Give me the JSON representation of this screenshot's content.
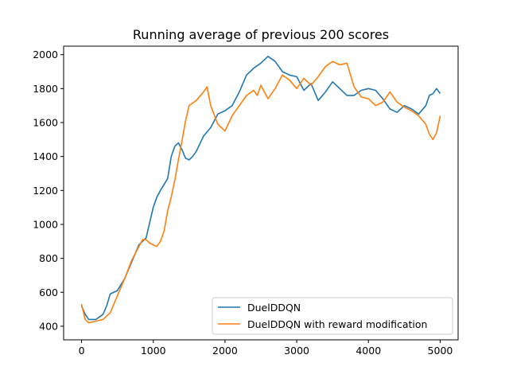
{
  "chart_data": {
    "type": "line",
    "title": "Running average of previous 200 scores",
    "xlabel": "",
    "ylabel": "",
    "xlim": [
      -250,
      5250
    ],
    "ylim": [
      320,
      2050
    ],
    "x_ticks": [
      0,
      1000,
      2000,
      3000,
      4000,
      5000
    ],
    "y_ticks": [
      400,
      600,
      800,
      1000,
      1200,
      1400,
      1600,
      1800,
      2000
    ],
    "grid": false,
    "legend_position": "lower right",
    "series": [
      {
        "name": "DuelDDQN",
        "color": "#1f77b4",
        "x": [
          0,
          50,
          100,
          200,
          300,
          350,
          400,
          500,
          600,
          700,
          800,
          900,
          1000,
          1050,
          1100,
          1200,
          1250,
          1300,
          1350,
          1400,
          1450,
          1500,
          1550,
          1600,
          1700,
          1800,
          1900,
          2000,
          2100,
          2200,
          2300,
          2400,
          2500,
          2600,
          2700,
          2800,
          2900,
          3000,
          3100,
          3200,
          3300,
          3400,
          3500,
          3600,
          3700,
          3800,
          3900,
          4000,
          4100,
          4200,
          4300,
          4400,
          4500,
          4600,
          4700,
          4800,
          4850,
          4900,
          4950,
          5000
        ],
        "y": [
          520,
          470,
          440,
          440,
          470,
          520,
          590,
          610,
          680,
          780,
          880,
          920,
          1100,
          1160,
          1200,
          1270,
          1400,
          1460,
          1480,
          1440,
          1390,
          1380,
          1400,
          1430,
          1520,
          1570,
          1650,
          1670,
          1700,
          1780,
          1880,
          1920,
          1950,
          1990,
          1960,
          1900,
          1880,
          1870,
          1790,
          1830,
          1730,
          1780,
          1840,
          1800,
          1760,
          1760,
          1790,
          1800,
          1790,
          1740,
          1680,
          1660,
          1700,
          1680,
          1650,
          1700,
          1760,
          1770,
          1800,
          1770
        ]
      },
      {
        "name": "DuelDDQN with reward modification",
        "color": "#ff7f0e",
        "x": [
          0,
          50,
          100,
          200,
          300,
          350,
          400,
          500,
          600,
          700,
          800,
          850,
          900,
          950,
          1000,
          1050,
          1100,
          1150,
          1200,
          1250,
          1300,
          1350,
          1400,
          1450,
          1500,
          1600,
          1700,
          1750,
          1800,
          1900,
          2000,
          2100,
          2200,
          2300,
          2400,
          2450,
          2500,
          2600,
          2700,
          2800,
          2900,
          3000,
          3100,
          3200,
          3300,
          3400,
          3500,
          3600,
          3700,
          3800,
          3900,
          4000,
          4100,
          4200,
          4300,
          4400,
          4500,
          4600,
          4700,
          4800,
          4850,
          4900,
          4950,
          5000
        ],
        "y": [
          530,
          440,
          420,
          430,
          440,
          460,
          480,
          580,
          680,
          790,
          870,
          910,
          910,
          890,
          880,
          870,
          900,
          960,
          1080,
          1160,
          1260,
          1380,
          1490,
          1610,
          1700,
          1730,
          1780,
          1810,
          1700,
          1590,
          1550,
          1640,
          1700,
          1760,
          1790,
          1760,
          1820,
          1740,
          1800,
          1880,
          1850,
          1800,
          1860,
          1820,
          1870,
          1930,
          1960,
          1940,
          1950,
          1810,
          1750,
          1740,
          1700,
          1720,
          1780,
          1720,
          1690,
          1670,
          1640,
          1590,
          1530,
          1500,
          1540,
          1640
        ]
      }
    ]
  }
}
